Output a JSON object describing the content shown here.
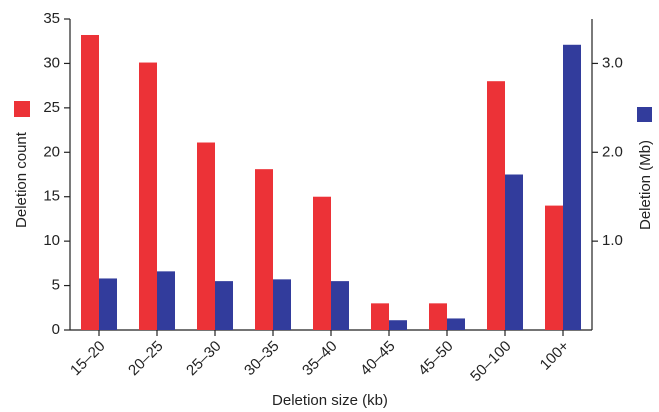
{
  "chart_data": {
    "type": "bar",
    "x_label": "Deletion size (kb)",
    "y_label": "Deletion count",
    "y2_label": "Deletion (Mb)",
    "categories": [
      "15–20",
      "20–25",
      "25–30",
      "30–35",
      "35–40",
      "40–45",
      "45–50",
      "50–100",
      "100+"
    ],
    "series": [
      {
        "color": "#ec3237",
        "values": [
          33.2,
          30.1,
          21.1,
          18.1,
          15,
          3,
          3,
          28,
          14
        ]
      },
      {
        "color": "#323c9c",
        "axis": "y2",
        "values": [
          0.58,
          0.66,
          0.55,
          0.57,
          0.55,
          0.11,
          0.13,
          1.75,
          3.21
        ]
      }
    ],
    "ylim": [
      0,
      35
    ],
    "yticks": [
      0,
      5,
      10,
      15,
      20,
      25,
      30,
      35
    ],
    "y2lim": [
      0,
      3.5
    ],
    "y2ticks": [
      {
        "value": 1,
        "label": "1.0"
      },
      {
        "value": 2,
        "label": "2.0"
      },
      {
        "value": 3,
        "label": "3.0"
      }
    ]
  }
}
